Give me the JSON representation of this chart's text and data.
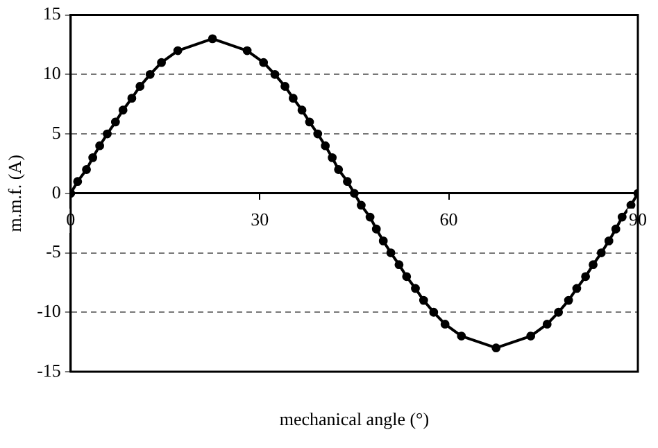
{
  "chart_data": {
    "type": "line",
    "xlabel": "mechanical angle (°)",
    "ylabel": "m.m.f. (A)",
    "x": [
      0,
      1.1,
      2.5,
      3.5,
      4.6,
      5.8,
      7.1,
      8.3,
      9.7,
      11,
      12.6,
      14.4,
      17,
      22.5,
      28,
      30.6,
      32.4,
      34,
      35.3,
      36.7,
      37.9,
      39.2,
      40.4,
      41.5,
      42.5,
      43.9,
      45,
      46.1,
      47.5,
      48.5,
      49.6,
      50.8,
      52.1,
      53.3,
      54.7,
      56,
      57.6,
      59.4,
      62,
      67.5,
      73,
      75.6,
      77.4,
      79,
      80.3,
      81.7,
      82.9,
      84.2,
      85.4,
      86.5,
      87.5,
      88.9,
      90
    ],
    "series": [
      {
        "color": "#000000",
        "values": [
          0,
          1,
          2,
          3,
          4,
          5,
          6,
          7,
          8,
          9,
          10,
          11,
          12,
          13,
          12,
          11,
          10,
          9,
          8,
          7,
          6,
          5,
          4,
          3,
          2,
          1,
          0,
          -1,
          -2,
          -3,
          -4,
          -5,
          -6,
          -7,
          -8,
          -9,
          -10,
          -11,
          -12,
          -13,
          -12,
          -11,
          -10,
          -9,
          -8,
          -7,
          -6,
          -5,
          -4,
          -3,
          -2,
          -1,
          0
        ]
      }
    ],
    "xlim": [
      0,
      90
    ],
    "xticks": [
      0,
      30,
      60,
      90
    ],
    "ylim": [
      -15,
      15
    ],
    "yticks": [
      -15,
      -10,
      -5,
      0,
      5,
      10,
      15
    ],
    "grid": "y",
    "marker": "circle",
    "line_style": "solid",
    "legend": false
  }
}
